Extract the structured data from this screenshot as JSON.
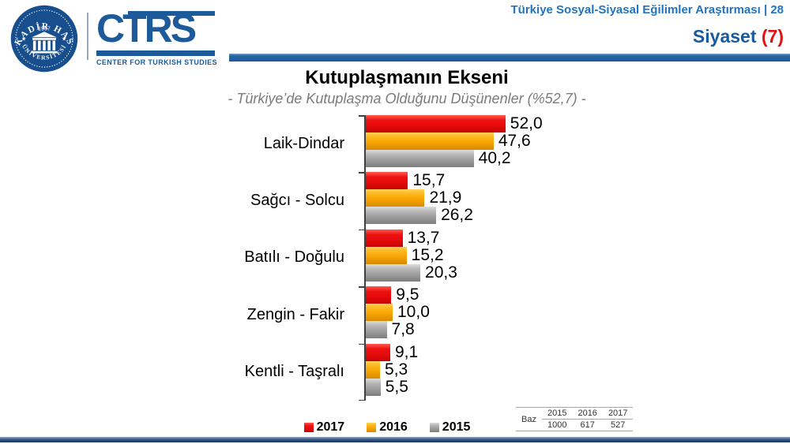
{
  "header": {
    "study_title": "Türkiye Sosyal-Siyasal Eğilimler Araştırması | 28",
    "section_label": "Siyaset",
    "section_number": "(7)"
  },
  "logos": {
    "university_seal_top": "KADİR HAS",
    "university_seal_year": "1997",
    "university_seal_bottom": "ÜNİVERSİTESİ",
    "ctrs_acronym": "CTRS",
    "ctrs_caption": "CENTER FOR TURKISH STUDIES"
  },
  "chart_data": {
    "type": "bar",
    "orientation": "horizontal",
    "title": "Kutuplaşmanın Ekseni",
    "subtitle": "- Türkiye’de Kutuplaşma Olduğunu Düşünenler (%52,7) -",
    "categories": [
      "Laik-Dindar",
      "Sağcı - Solcu",
      "Batılı - Doğulu",
      "Zengin - Fakir",
      "Kentli - Taşralı"
    ],
    "series": [
      {
        "name": "2017",
        "color": "#ee1111",
        "values": [
          52.0,
          15.7,
          13.7,
          9.5,
          9.1
        ],
        "labels": [
          "52,0",
          "15,7",
          "13,7",
          "9,5",
          "9,1"
        ]
      },
      {
        "name": "2016",
        "color": "#f7a200",
        "values": [
          47.6,
          21.9,
          15.2,
          10.0,
          5.3
        ],
        "labels": [
          "47,6",
          "21,9",
          "15,2",
          "10,0",
          "5,3"
        ]
      },
      {
        "name": "2015",
        "color": "#9d9d9d",
        "values": [
          40.2,
          26.2,
          20.3,
          7.8,
          5.5
        ],
        "labels": [
          "40,2",
          "26,2",
          "20,3",
          "7,8",
          "5,5"
        ]
      }
    ],
    "xlim": [
      0,
      56
    ],
    "grid": false,
    "legend_position": "bottom"
  },
  "baz_table": {
    "label": "Baz",
    "columns": [
      "2015",
      "2016",
      "2017"
    ],
    "values": [
      "1000",
      "617",
      "527"
    ]
  },
  "accent_colors": {
    "header_blue": "#2473be",
    "divider_blue": "#1f5b99",
    "section_red": "#e21111",
    "footer_navy": "#1d3c66"
  }
}
